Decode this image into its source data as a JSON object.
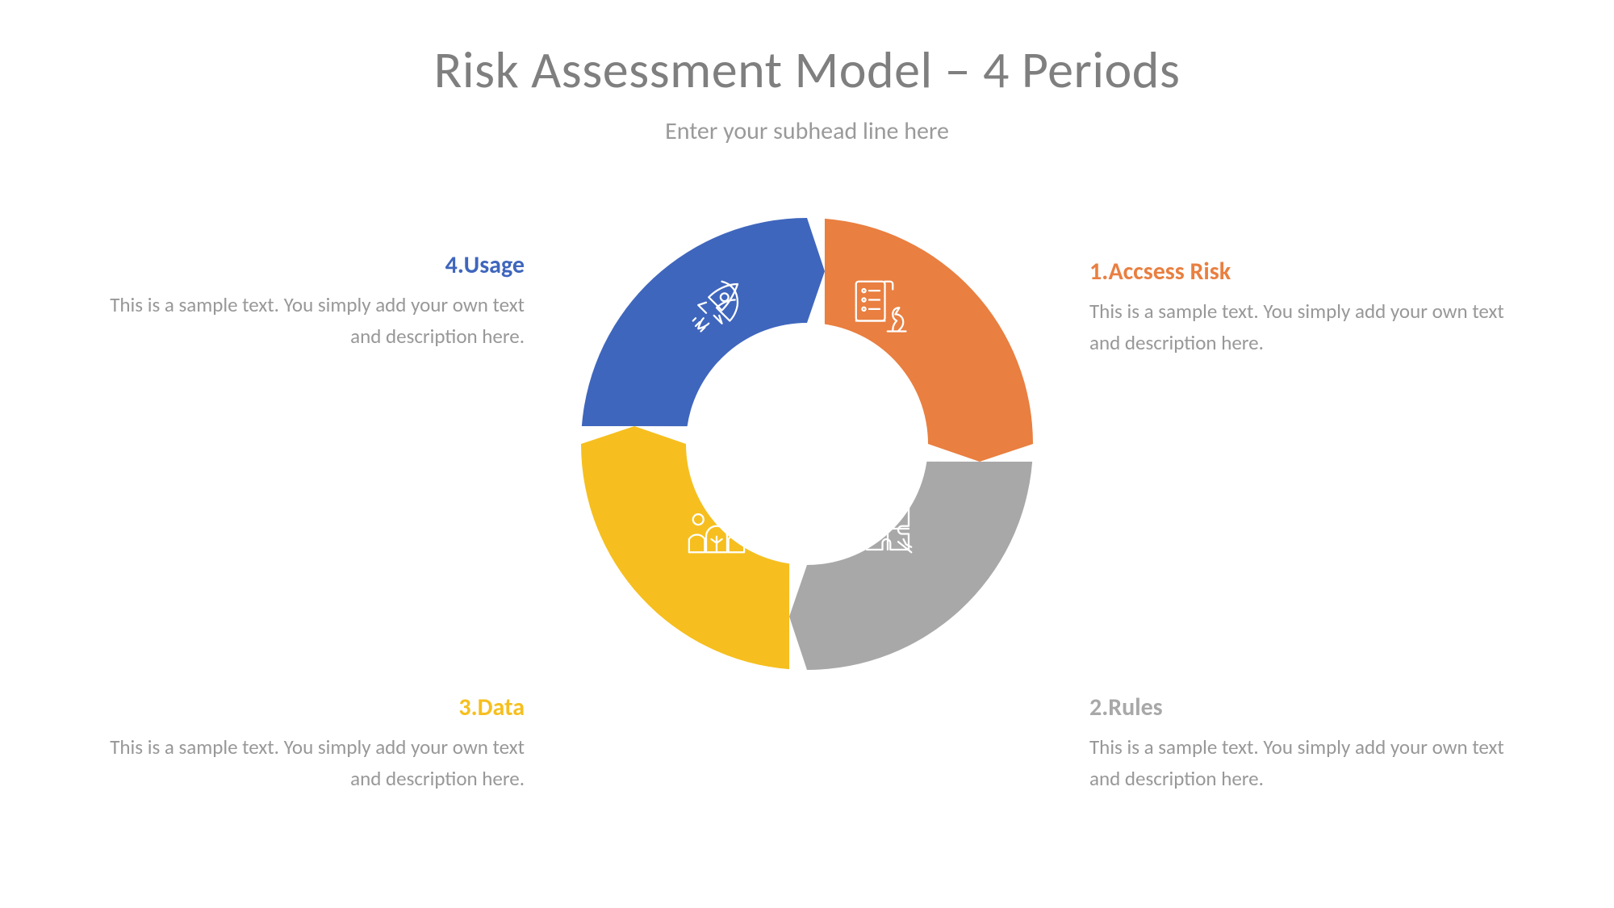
{
  "title": "Risk Assessment Model – 4 Periods",
  "subtitle": "Enter your subhead line here",
  "colors": {
    "title": "#7f7f7f",
    "subtitle": "#9a9a9a",
    "desc": "#989898",
    "background": "#ffffff"
  },
  "donut": {
    "type": "donut-cycle",
    "outer_radius": 280,
    "inner_radius": 150,
    "arrow_notch": 22,
    "segments": [
      {
        "id": 1,
        "label_num": "1.",
        "label": "Accsess Risk",
        "color": "#e97f40",
        "position": "top-right",
        "icon": "strategy"
      },
      {
        "id": 2,
        "label_num": "2.",
        "label": "Rules",
        "color": "#a8a8a8",
        "position": "bottom-right",
        "icon": "puzzle"
      },
      {
        "id": 3,
        "label_num": "3.",
        "label": "Data",
        "color": "#f6bf1f",
        "position": "bottom-left",
        "icon": "team"
      },
      {
        "id": 4,
        "label_num": "4.",
        "label": "Usage",
        "color": "#3f66bd",
        "position": "top-left",
        "icon": "rocket"
      }
    ]
  },
  "captions": {
    "desc_template": "This is a sample text. You simply add your own text and description here.",
    "items": [
      {
        "key": "c1",
        "title": "1.Accsess Risk",
        "title_color": "#e97f40",
        "align": "right",
        "desc": "This is a sample text. You simply add your own text and description here."
      },
      {
        "key": "c2",
        "title": "2.Rules",
        "title_color": "#a8a8a8",
        "align": "right",
        "desc": "This is a sample text. You simply add your own text and description here."
      },
      {
        "key": "c3",
        "title": "3.Data",
        "title_color": "#f6bf1f",
        "align": "left",
        "desc": "This is a sample text. You simply add your own text and description here."
      },
      {
        "key": "c4",
        "title": "4.Usage",
        "title_color": "#3f66bd",
        "align": "left",
        "desc": "This is a sample text. You simply add your own text and description here."
      }
    ]
  },
  "typography": {
    "title_fontsize": 64,
    "subtitle_fontsize": 30,
    "caption_title_fontsize": 30,
    "caption_desc_fontsize": 25
  }
}
